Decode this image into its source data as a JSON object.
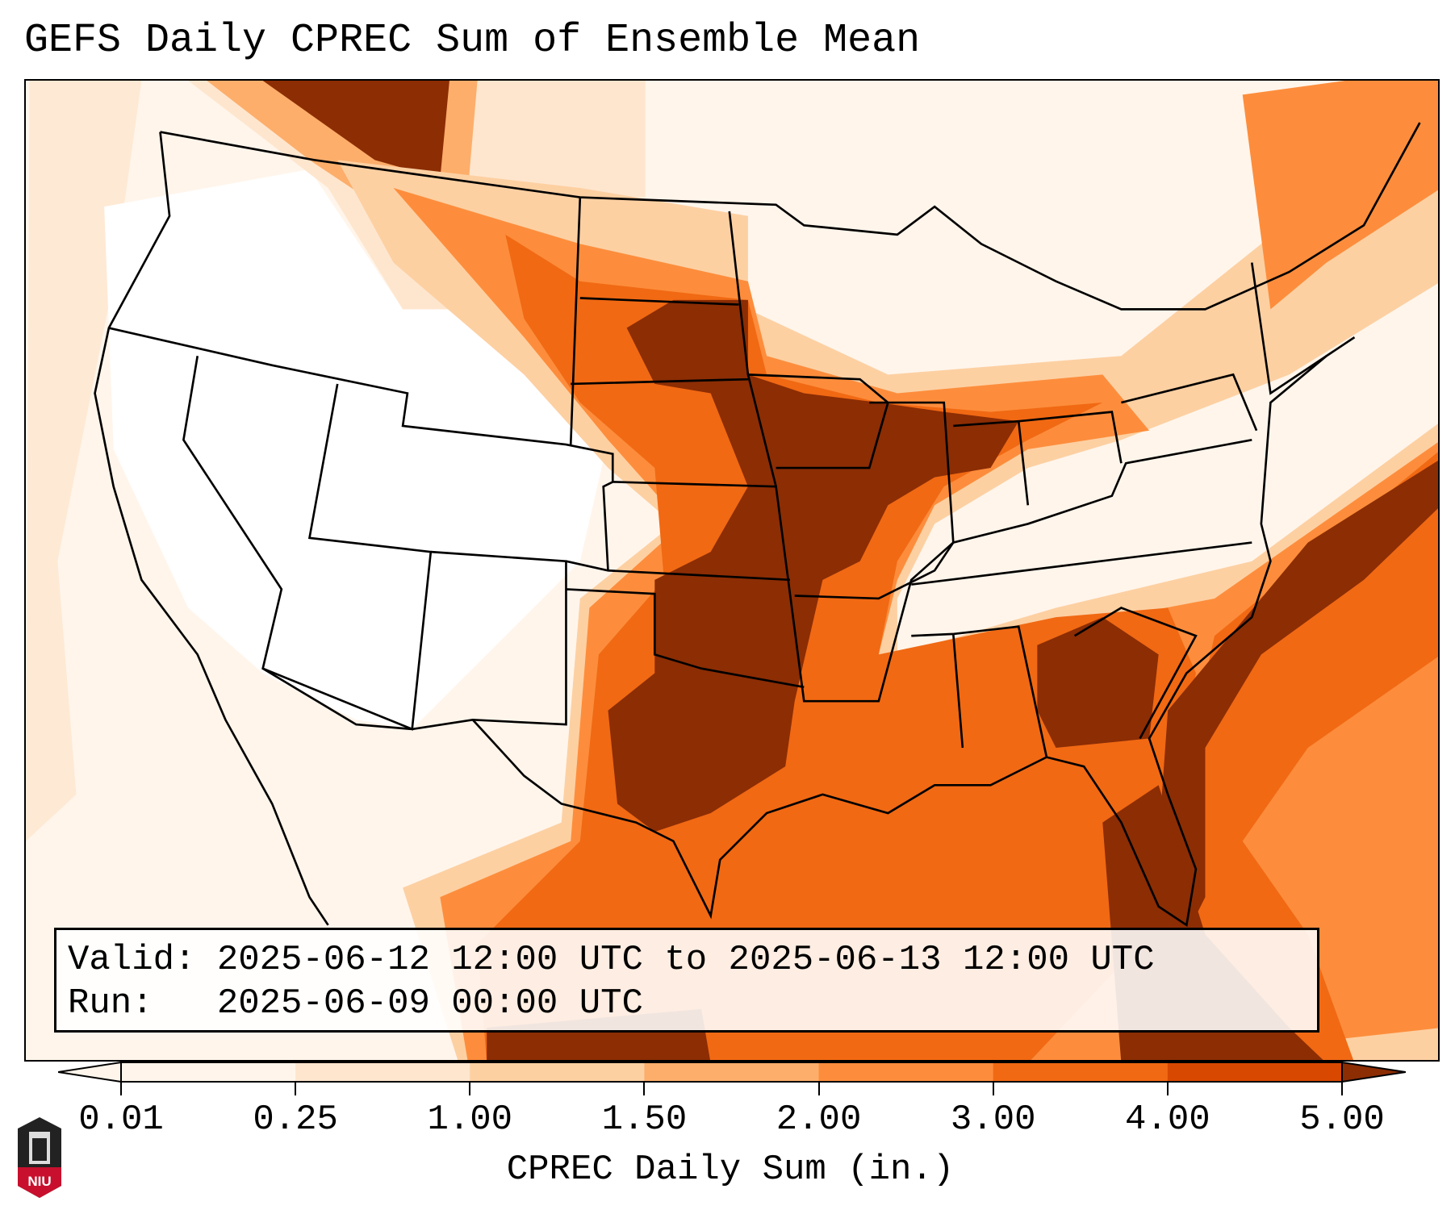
{
  "title": "GEFS Daily CPREC Sum of Ensemble Mean",
  "legend": {
    "valid_line": "Valid: 2025-06-12 12:00 UTC to 2025-06-13 12:00 UTC",
    "run_line": "Run:   2025-06-09 00:00 UTC"
  },
  "colorbar": {
    "label": "CPREC Daily Sum (in.)",
    "ticks": [
      "0.01",
      "0.25",
      "1.00",
      "1.50",
      "2.00",
      "3.00",
      "4.00",
      "5.00"
    ],
    "colors": [
      "#fff5eb",
      "#fee6ce",
      "#fdd0a2",
      "#fdae6b",
      "#fd8d3c",
      "#f16913",
      "#d94801",
      "#8c2d04"
    ],
    "extend": "both"
  },
  "logo": {
    "text": "NIU"
  }
}
